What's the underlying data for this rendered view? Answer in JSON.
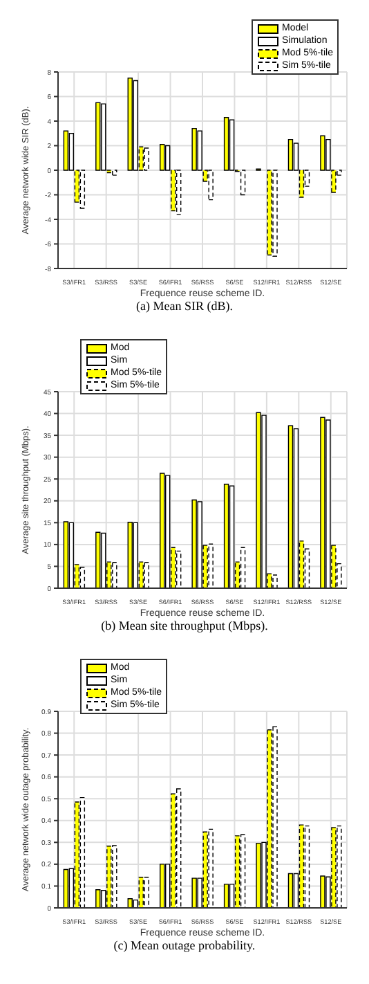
{
  "chart_data": [
    {
      "type": "bar",
      "title": "(a) Mean SIR (dB).",
      "xlabel": "Frequence reuse scheme ID.",
      "ylabel": "Average network wide SIR (dB).",
      "categories": [
        "S3/IFR1",
        "S3/RSS",
        "S3/SE",
        "S6/IFR1",
        "S6/RSS",
        "S6/SE",
        "S12/IFR1",
        "S12/RSS",
        "S12/SE"
      ],
      "ylim": [
        -8,
        8
      ],
      "yticks": [
        -8,
        -6,
        -4,
        -2,
        0,
        2,
        4,
        6,
        8
      ],
      "grid": true,
      "legend": "top right",
      "series": [
        {
          "name": "Model",
          "color": "#ffff00",
          "line_style": "solid",
          "values": [
            3.2,
            5.5,
            7.5,
            2.1,
            3.4,
            4.3,
            0.1,
            2.5,
            2.8
          ]
        },
        {
          "name": "Simulation",
          "color": "#ffffff",
          "line_style": "solid",
          "values": [
            3.0,
            5.4,
            7.3,
            2.0,
            3.2,
            4.1,
            0.0,
            2.2,
            2.5
          ]
        },
        {
          "name": "Mod 5%-tile",
          "color": "#ffff00",
          "line_style": "dashed",
          "values": [
            -2.6,
            -0.2,
            1.9,
            -3.3,
            -0.9,
            -0.1,
            -6.9,
            -2.2,
            -1.8
          ]
        },
        {
          "name": "Sim 5%-tile",
          "color": "#ffffff",
          "line_style": "dashed",
          "values": [
            -3.1,
            -0.4,
            1.8,
            -3.6,
            -2.4,
            -2.0,
            -7.0,
            -1.3,
            -0.4
          ]
        }
      ]
    },
    {
      "type": "bar",
      "title": "(b) Mean site throughput (Mbps).",
      "xlabel": "Frequence reuse scheme ID.",
      "ylabel": "Average site throughput (Mbps).",
      "categories": [
        "S3/IFR1",
        "S3/RSS",
        "S3/SE",
        "S6/IFR1",
        "S6/RSS",
        "S6/SE",
        "S12/IFR1",
        "S12/RSS",
        "S12/SE"
      ],
      "ylim": [
        0,
        45
      ],
      "yticks": [
        0,
        5,
        10,
        15,
        20,
        25,
        30,
        35,
        40,
        45
      ],
      "grid": true,
      "legend": "top left",
      "series": [
        {
          "name": "Mod",
          "color": "#ffff00",
          "line_style": "solid",
          "values": [
            15.2,
            12.8,
            15.1,
            26.3,
            20.2,
            23.8,
            40.2,
            37.2,
            39.1
          ]
        },
        {
          "name": "Sim",
          "color": "#ffffff",
          "line_style": "solid",
          "values": [
            15.0,
            12.6,
            15.0,
            25.8,
            19.8,
            23.4,
            39.6,
            36.5,
            38.5
          ]
        },
        {
          "name": "Mod 5%-tile",
          "color": "#ffff00",
          "line_style": "dashed",
          "values": [
            5.4,
            6.0,
            6.0,
            9.3,
            9.8,
            6.0,
            3.3,
            10.8,
            9.8
          ]
        },
        {
          "name": "Sim 5%-tile",
          "color": "#ffffff",
          "line_style": "dashed",
          "values": [
            4.8,
            5.9,
            5.9,
            8.5,
            10.1,
            9.3,
            3.0,
            9.0,
            5.6
          ]
        }
      ]
    },
    {
      "type": "bar",
      "title": "(c) Mean outage probability.",
      "xlabel": "Frequence reuse scheme ID.",
      "ylabel": "Average network wide outage probability.",
      "categories": [
        "S3/IFR1",
        "S3/RSS",
        "S3/SE",
        "S6/IFR1",
        "S6/RSS",
        "S6/SE",
        "S12/IFR1",
        "S12/RSS",
        "S12/SE"
      ],
      "ylim": [
        0,
        0.9
      ],
      "yticks": [
        0,
        0.1,
        0.2,
        0.3,
        0.4,
        0.5,
        0.6,
        0.7,
        0.8,
        0.9
      ],
      "grid": true,
      "legend": "top left",
      "series": [
        {
          "name": "Mod",
          "color": "#ffff00",
          "line_style": "solid",
          "values": [
            0.176,
            0.083,
            0.042,
            0.2,
            0.136,
            0.108,
            0.296,
            0.157,
            0.146
          ]
        },
        {
          "name": "Sim",
          "color": "#ffffff",
          "line_style": "solid",
          "values": [
            0.18,
            0.08,
            0.036,
            0.2,
            0.136,
            0.108,
            0.3,
            0.157,
            0.142
          ]
        },
        {
          "name": "Mod 5%-tile",
          "color": "#ffff00",
          "line_style": "dashed",
          "values": [
            0.485,
            0.283,
            0.14,
            0.522,
            0.348,
            0.33,
            0.815,
            0.38,
            0.368
          ]
        },
        {
          "name": "Sim 5%-tile",
          "color": "#ffffff",
          "line_style": "dashed",
          "values": [
            0.505,
            0.285,
            0.14,
            0.545,
            0.36,
            0.335,
            0.83,
            0.375,
            0.375
          ]
        }
      ]
    }
  ]
}
